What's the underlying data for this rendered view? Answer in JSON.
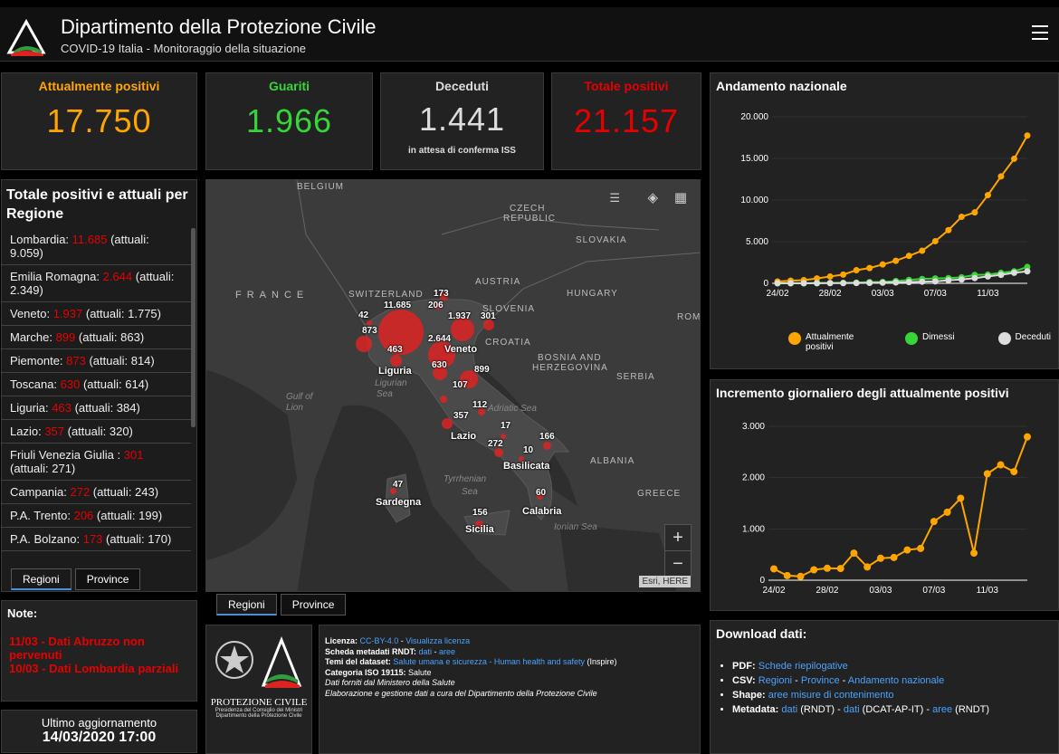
{
  "header": {
    "title": "Dipartimento della Protezione Civile",
    "subtitle": "COVID-19 Italia - Monitoraggio della situazione"
  },
  "stats": {
    "positivi": {
      "label": "Attualmente positivi",
      "value": "17.750",
      "color": "#ffa500"
    },
    "guariti": {
      "label": "Guariti",
      "value": "1.966",
      "color": "#38d538"
    },
    "deceduti": {
      "label": "Deceduti",
      "value": "1.441",
      "sub": "in attesa di conferma ISS",
      "color": "#dddddd"
    },
    "totale": {
      "label": "Totale positivi",
      "value": "21.157",
      "color": "#e60000"
    }
  },
  "regions": {
    "title": "Totale positivi e attuali per Regione",
    "items": [
      {
        "name": "Lombardia: ",
        "total": "11.685",
        "attuali": " (attuali: 9.059)"
      },
      {
        "name": "Emilia Romagna: ",
        "total": "2.644",
        "attuali": " (attuali: 2.349)"
      },
      {
        "name": "Veneto: ",
        "total": "1.937",
        "attuali": " (attuali: 1.775)"
      },
      {
        "name": "Marche: ",
        "total": "899",
        "attuali": " (attuali: 863)"
      },
      {
        "name": "Piemonte: ",
        "total": "873",
        "attuali": " (attuali: 814)"
      },
      {
        "name": "Toscana: ",
        "total": "630",
        "attuali": " (attuali: 614)"
      },
      {
        "name": "Liguria: ",
        "total": "463",
        "attuali": " (attuali: 384)"
      },
      {
        "name": "Lazio: ",
        "total": "357",
        "attuali": " (attuali: 320)"
      },
      {
        "name": "Friuli Venezia Giulia : ",
        "total": "301",
        "attuali": " (attuali: 271)"
      },
      {
        "name": "Campania: ",
        "total": "272",
        "attuali": " (attuali: 243)"
      },
      {
        "name": "P.A. Trento: ",
        "total": "206",
        "attuali": " (attuali: 199)"
      },
      {
        "name": "P.A. Bolzano: ",
        "total": "173",
        "attuali": " (attuali: 170)"
      }
    ],
    "tabs": [
      "Regioni",
      "Province"
    ]
  },
  "note": {
    "title": "Note:",
    "lines": [
      "11/03 - Dati Abruzzo non pervenuti",
      "10/03 - Dati Lombardia parziali"
    ]
  },
  "update": {
    "label": "Ultimo aggiornamento",
    "value": "14/03/2020 17:00"
  },
  "map": {
    "countries": [
      "BELGIUM",
      "CZECH",
      "REPUBLIC",
      "SLOVAKIA",
      "FRANCE",
      "SWITZERLAND",
      "AUSTRIA",
      "HUNGARY",
      "SLOVENIA",
      "ROM",
      "CROATIA",
      "BOSNIA AND",
      "HERZEGOVINA",
      "SERBIA",
      "ALBANIA",
      "GREECE"
    ],
    "seas": [
      "Gulf of",
      "Lion",
      "Ligurian",
      "Sea",
      "Adriatic Sea",
      "Tyrrhenian",
      "Sea",
      "Ionian Sea"
    ],
    "values": [
      "11.685",
      "173",
      "206",
      "1.937",
      "301",
      "42",
      "873",
      "463",
      "2.644",
      "630",
      "899",
      "107",
      "112",
      "357",
      "17",
      "272",
      "166",
      "10",
      "47",
      "60",
      "156"
    ],
    "regions": [
      "Veneto",
      "Liguria",
      "Lazio",
      "Basilicata",
      "Sardegna",
      "Calabria",
      "Sicilia"
    ],
    "attribution": "Esri, HERE",
    "zoom_in": "+",
    "zoom_out": "−",
    "tabs": [
      "Regioni",
      "Province"
    ]
  },
  "license": {
    "l1_label": "Licenza: ",
    "l1_link1": "CC-BY-4.0",
    "l1_sep": " - ",
    "l1_link2": "Visualizza licenza",
    "l2_label": "Scheda metadati RNDT: ",
    "l2_link1": "dati",
    "l2_sep": " - ",
    "l2_link2": "aree",
    "l3_label": "Temi del dataset: ",
    "l3_link": "Salute umana e sicurezza - Human health and safety",
    "l3_tail": " (Inspire)",
    "l4_label": "Categoria ISO 19115: ",
    "l4_value": "Salute",
    "l5": "Dati forniti dal Ministero della Salute",
    "l6": "Elaborazione e gestione dati a cura del Dipartimento della Protezione Civile"
  },
  "logo_text": {
    "main": "PROTEZIONE CIVILE",
    "line1": "Presidenza del Consiglio dei Ministri",
    "line2": "Dipartimento della Protezione Civile"
  },
  "download": {
    "title": "Download dati:",
    "pdf_label": "PDF: ",
    "pdf_link": "Schede riepilogative",
    "csv_label": "CSV: ",
    "csv_l1": "Regioni",
    "csv_l2": "Province",
    "csv_l3": "Andamento nazionale",
    "sep": " - ",
    "shape_label": "Shape: ",
    "shape_link": "aree misure di contenimento",
    "meta_label": "Metadata: ",
    "meta_l1": "dati",
    "meta_t1": " (RNDT) - ",
    "meta_l2": "dati",
    "meta_t2": " (DCAT-AP-IT) - ",
    "meta_l3": "aree",
    "meta_t3": " (RNDT)"
  },
  "chart_data": [
    {
      "type": "line",
      "title": "Andamento nazionale",
      "x": [
        "24/02",
        "25/02",
        "26/02",
        "27/02",
        "28/02",
        "29/02",
        "01/03",
        "02/03",
        "03/03",
        "04/03",
        "05/03",
        "06/03",
        "07/03",
        "08/03",
        "09/03",
        "10/03",
        "11/03",
        "12/03",
        "13/03",
        "14/03"
      ],
      "xticks": [
        "24/02",
        "28/02",
        "03/03",
        "07/03",
        "11/03"
      ],
      "ylim": [
        0,
        20000
      ],
      "yticks": [
        "0",
        "5.000",
        "10.000",
        "15.000",
        "20.000"
      ],
      "series": [
        {
          "name": "Attualmente positivi",
          "color": "#ffa500",
          "values": [
            221,
            311,
            385,
            588,
            821,
            1049,
            1577,
            1835,
            2263,
            2706,
            3296,
            3916,
            5061,
            6387,
            7985,
            8514,
            10590,
            12839,
            14955,
            17750
          ]
        },
        {
          "name": "Dimessi",
          "color": "#38d538",
          "values": [
            1,
            1,
            3,
            45,
            46,
            50,
            83,
            149,
            160,
            276,
            414,
            523,
            589,
            622,
            724,
            1004,
            1045,
            1258,
            1439,
            1966
          ]
        },
        {
          "name": "Deceduti",
          "color": "#dddddd",
          "values": [
            7,
            10,
            12,
            17,
            21,
            29,
            34,
            52,
            79,
            107,
            148,
            197,
            233,
            366,
            463,
            631,
            827,
            1016,
            1266,
            1441
          ]
        }
      ]
    },
    {
      "type": "line",
      "title": "Incremento giornaliero degli attualmente positivi",
      "x": [
        "24/02",
        "25/02",
        "26/02",
        "27/02",
        "28/02",
        "29/02",
        "01/03",
        "02/03",
        "03/03",
        "04/03",
        "05/03",
        "06/03",
        "07/03",
        "08/03",
        "09/03",
        "10/03",
        "11/03",
        "12/03",
        "13/03",
        "14/03"
      ],
      "xticks": [
        "24/02",
        "28/02",
        "03/03",
        "07/03",
        "11/03"
      ],
      "ylim": [
        0,
        3000
      ],
      "yticks": [
        "0",
        "1.000",
        "2.000",
        "3.000"
      ],
      "series": [
        {
          "name": "Incremento",
          "color": "#ffa500",
          "values": [
            221,
            90,
            74,
            203,
            233,
            228,
            528,
            258,
            428,
            443,
            590,
            620,
            1145,
            1326,
            1598,
            529,
            2076,
            2249,
            2116,
            2795
          ]
        }
      ]
    }
  ]
}
